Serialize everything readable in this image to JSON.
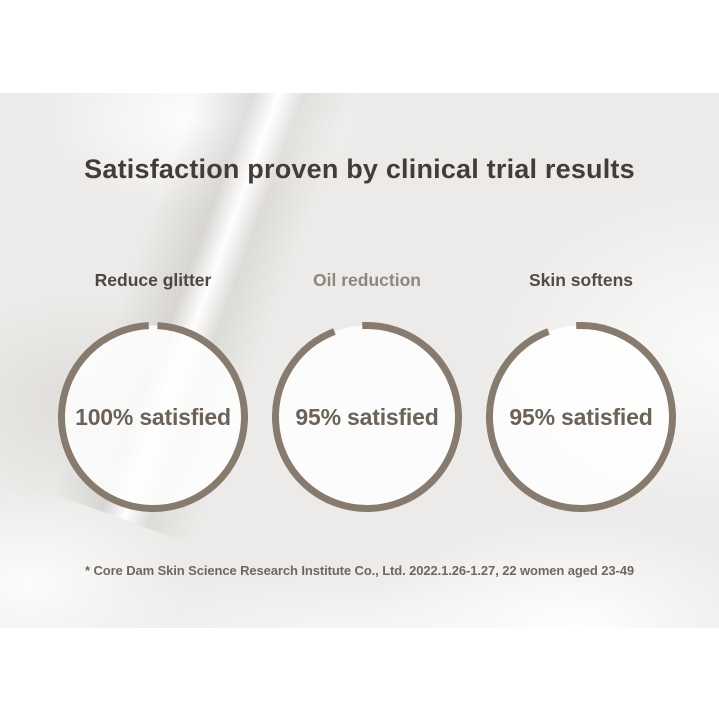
{
  "panel": {
    "title": "Satisfaction proven by clinical trial results",
    "footnote": "* Core Dam Skin Science Research Institute Co., Ltd. 2022.1.26-1.27, 22 women aged 23-49",
    "background_color": "#ecebe9",
    "title_color": "#453d35",
    "footnote_color": "#6f6861"
  },
  "stats": [
    {
      "label": "Reduce glitter",
      "label_color": "#4e4740",
      "value": 100,
      "value_text": "100% satisfied"
    },
    {
      "label": "Oil reduction",
      "label_color": "#8f867c",
      "value": 95,
      "value_text": "95% satisfied"
    },
    {
      "label": "Skin softens",
      "label_color": "#544d46",
      "value": 95,
      "value_text": "95% satisfied"
    }
  ],
  "chart_data": {
    "type": "pie",
    "variant": "open-ring-donut",
    "title": "Satisfaction proven by clinical trial results",
    "categories": [
      "Reduce glitter",
      "Oil reduction",
      "Skin softens"
    ],
    "values": [
      100,
      95,
      95
    ],
    "unit": "% satisfied",
    "data_labels": [
      "100% satisfied",
      "95% satisfied",
      "95% satisfied"
    ],
    "ring_color": "#867b6e",
    "ring_fill_color": "#ffffff",
    "value_text_color": "#6b6359",
    "ring_gap_offset_deg": [
      0,
      12,
      12
    ],
    "footnote": "* Core Dam Skin Science Research Institute Co., Ltd. 2022.1.26-1.27, 22 women aged 23-49",
    "legend": "none",
    "grid": "off"
  }
}
